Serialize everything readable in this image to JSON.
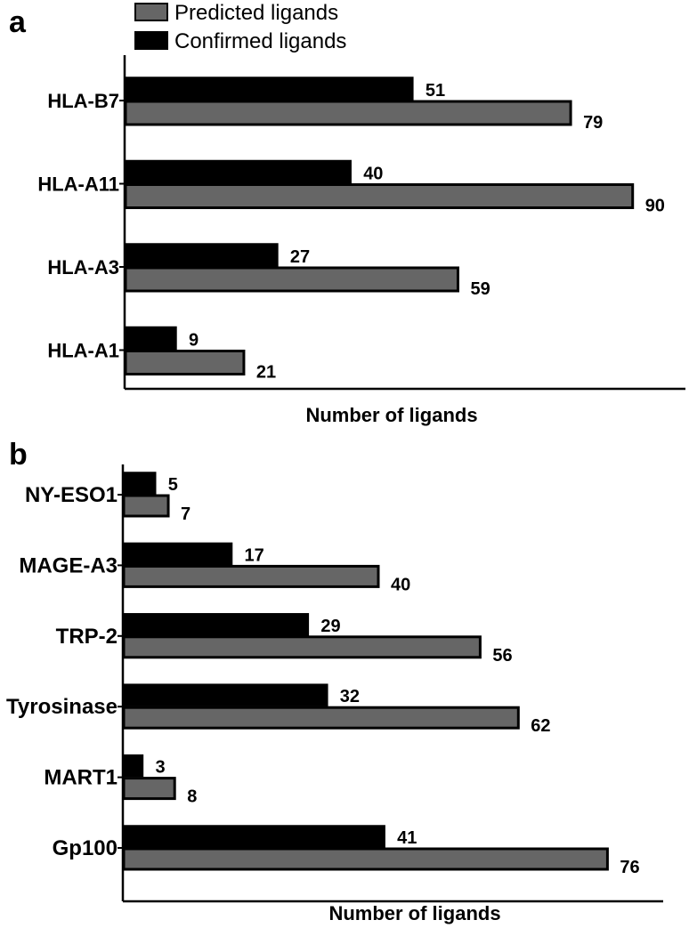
{
  "legend": {
    "predicted_label": "Predicted ligands",
    "confirmed_label": "Confirmed ligands"
  },
  "colors": {
    "predicted": "#666666",
    "confirmed": "#000000"
  },
  "chart_data": [
    {
      "panel": "a",
      "type": "bar",
      "orientation": "horizontal",
      "categories": [
        "HLA-B7",
        "HLA-A11",
        "HLA-A3",
        "HLA-A1"
      ],
      "series": [
        {
          "name": "Confirmed ligands",
          "values": [
            51,
            40,
            27,
            9
          ]
        },
        {
          "name": "Predicted ligands",
          "values": [
            79,
            90,
            59,
            21
          ]
        }
      ],
      "xlabel": "Number of ligands",
      "xlim": [
        0,
        90
      ]
    },
    {
      "panel": "b",
      "type": "bar",
      "orientation": "horizontal",
      "categories": [
        "NY-ESO1",
        "MAGE-A3",
        "TRP-2",
        "Tyrosinase",
        "MART1",
        "Gp100"
      ],
      "series": [
        {
          "name": "Confirmed ligands",
          "values": [
            5,
            17,
            29,
            32,
            3,
            41
          ]
        },
        {
          "name": "Predicted ligands",
          "values": [
            7,
            40,
            56,
            62,
            8,
            76
          ]
        }
      ],
      "xlabel": "Number of ligands",
      "xlim": [
        0,
        76
      ]
    }
  ]
}
